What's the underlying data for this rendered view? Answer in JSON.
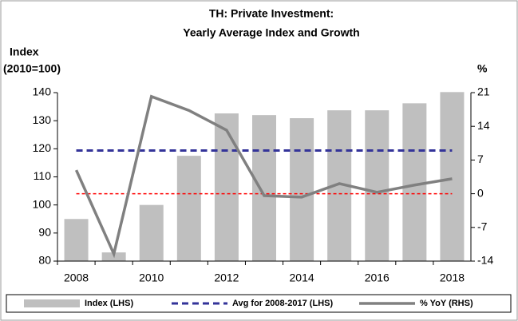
{
  "chart_data": {
    "type": "bar-line",
    "title": [
      "TH: Private Investment:",
      "Yearly Average Index and Growth"
    ],
    "ylabel": [
      "Index",
      "(2010=100)"
    ],
    "y2label": "%",
    "categories": [
      "2008",
      null,
      "2010",
      null,
      "2012",
      null,
      "2014",
      null,
      "2016",
      null,
      "2018"
    ],
    "series": [
      {
        "name": "Index (LHS)",
        "type": "bar",
        "color": "#bfbfbf",
        "values": [
          95,
          83.1,
          100,
          117.5,
          132.6,
          132,
          130.9,
          133.7,
          133.7,
          136.2,
          140.2
        ]
      },
      {
        "name": "Avg for 2008-2017 (LHS)",
        "type": "hline",
        "color": "#333399",
        "value": 119.4
      },
      {
        "name": "% YoY (RHS)",
        "type": "line",
        "axis": "y2",
        "color": "#808080",
        "values": [
          4.9,
          -12.5,
          20.2,
          17.3,
          13.2,
          -0.4,
          -0.7,
          2.1,
          0.3,
          1.8,
          3.1
        ]
      }
    ],
    "reference_line": {
      "axis": "y2",
      "value": 0,
      "color": "#ff0000"
    },
    "ylim": [
      80,
      140
    ],
    "yticks": [
      80,
      90,
      100,
      110,
      120,
      130,
      140
    ],
    "y2lim": [
      -14,
      21
    ],
    "y2ticks": [
      -14,
      -7,
      0,
      7,
      14,
      21
    ],
    "legend": "bottom"
  }
}
